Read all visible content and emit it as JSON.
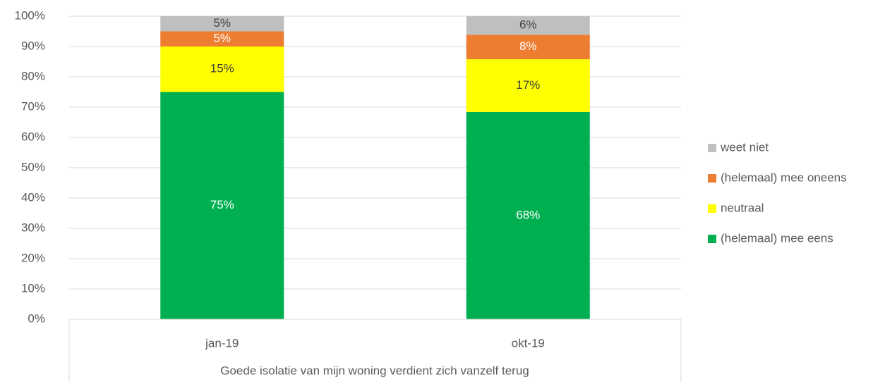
{
  "chart_data": {
    "type": "stacked_bar",
    "x_axis_title": "Goede isolatie van mijn woning verdient zich vanzelf terug",
    "categories": [
      "jan-19",
      "okt-19"
    ],
    "series": [
      {
        "name": "(helemaal) mee eens",
        "color": "#00b050",
        "values": [
          75,
          68.4
        ],
        "value_labels": [
          "75%",
          "68%"
        ]
      },
      {
        "name": "neutraal",
        "color": "#ffff00",
        "values": [
          15,
          17.4
        ],
        "value_labels": [
          "15%",
          "17%"
        ]
      },
      {
        "name": "(helemaal) mee oneens",
        "color": "#ed7d31",
        "values": [
          5,
          8.1
        ],
        "value_labels": [
          "5%",
          "8%"
        ]
      },
      {
        "name": "weet niet",
        "color": "#bfbfbf",
        "values": [
          5,
          6.1
        ],
        "value_labels": [
          "5%",
          "6%"
        ]
      }
    ],
    "ylim": [
      0,
      100
    ],
    "yticks": [
      {
        "value": 0,
        "label": "0%"
      },
      {
        "value": 10,
        "label": "10%"
      },
      {
        "value": 20,
        "label": "20%"
      },
      {
        "value": 30,
        "label": "30%"
      },
      {
        "value": 40,
        "label": "40%"
      },
      {
        "value": 50,
        "label": "50%"
      },
      {
        "value": 60,
        "label": "60%"
      },
      {
        "value": 70,
        "label": "70%"
      },
      {
        "value": 80,
        "label": "80%"
      },
      {
        "value": 90,
        "label": "90%"
      },
      {
        "value": 100,
        "label": "100%"
      }
    ],
    "grid": true,
    "legend": "right"
  }
}
